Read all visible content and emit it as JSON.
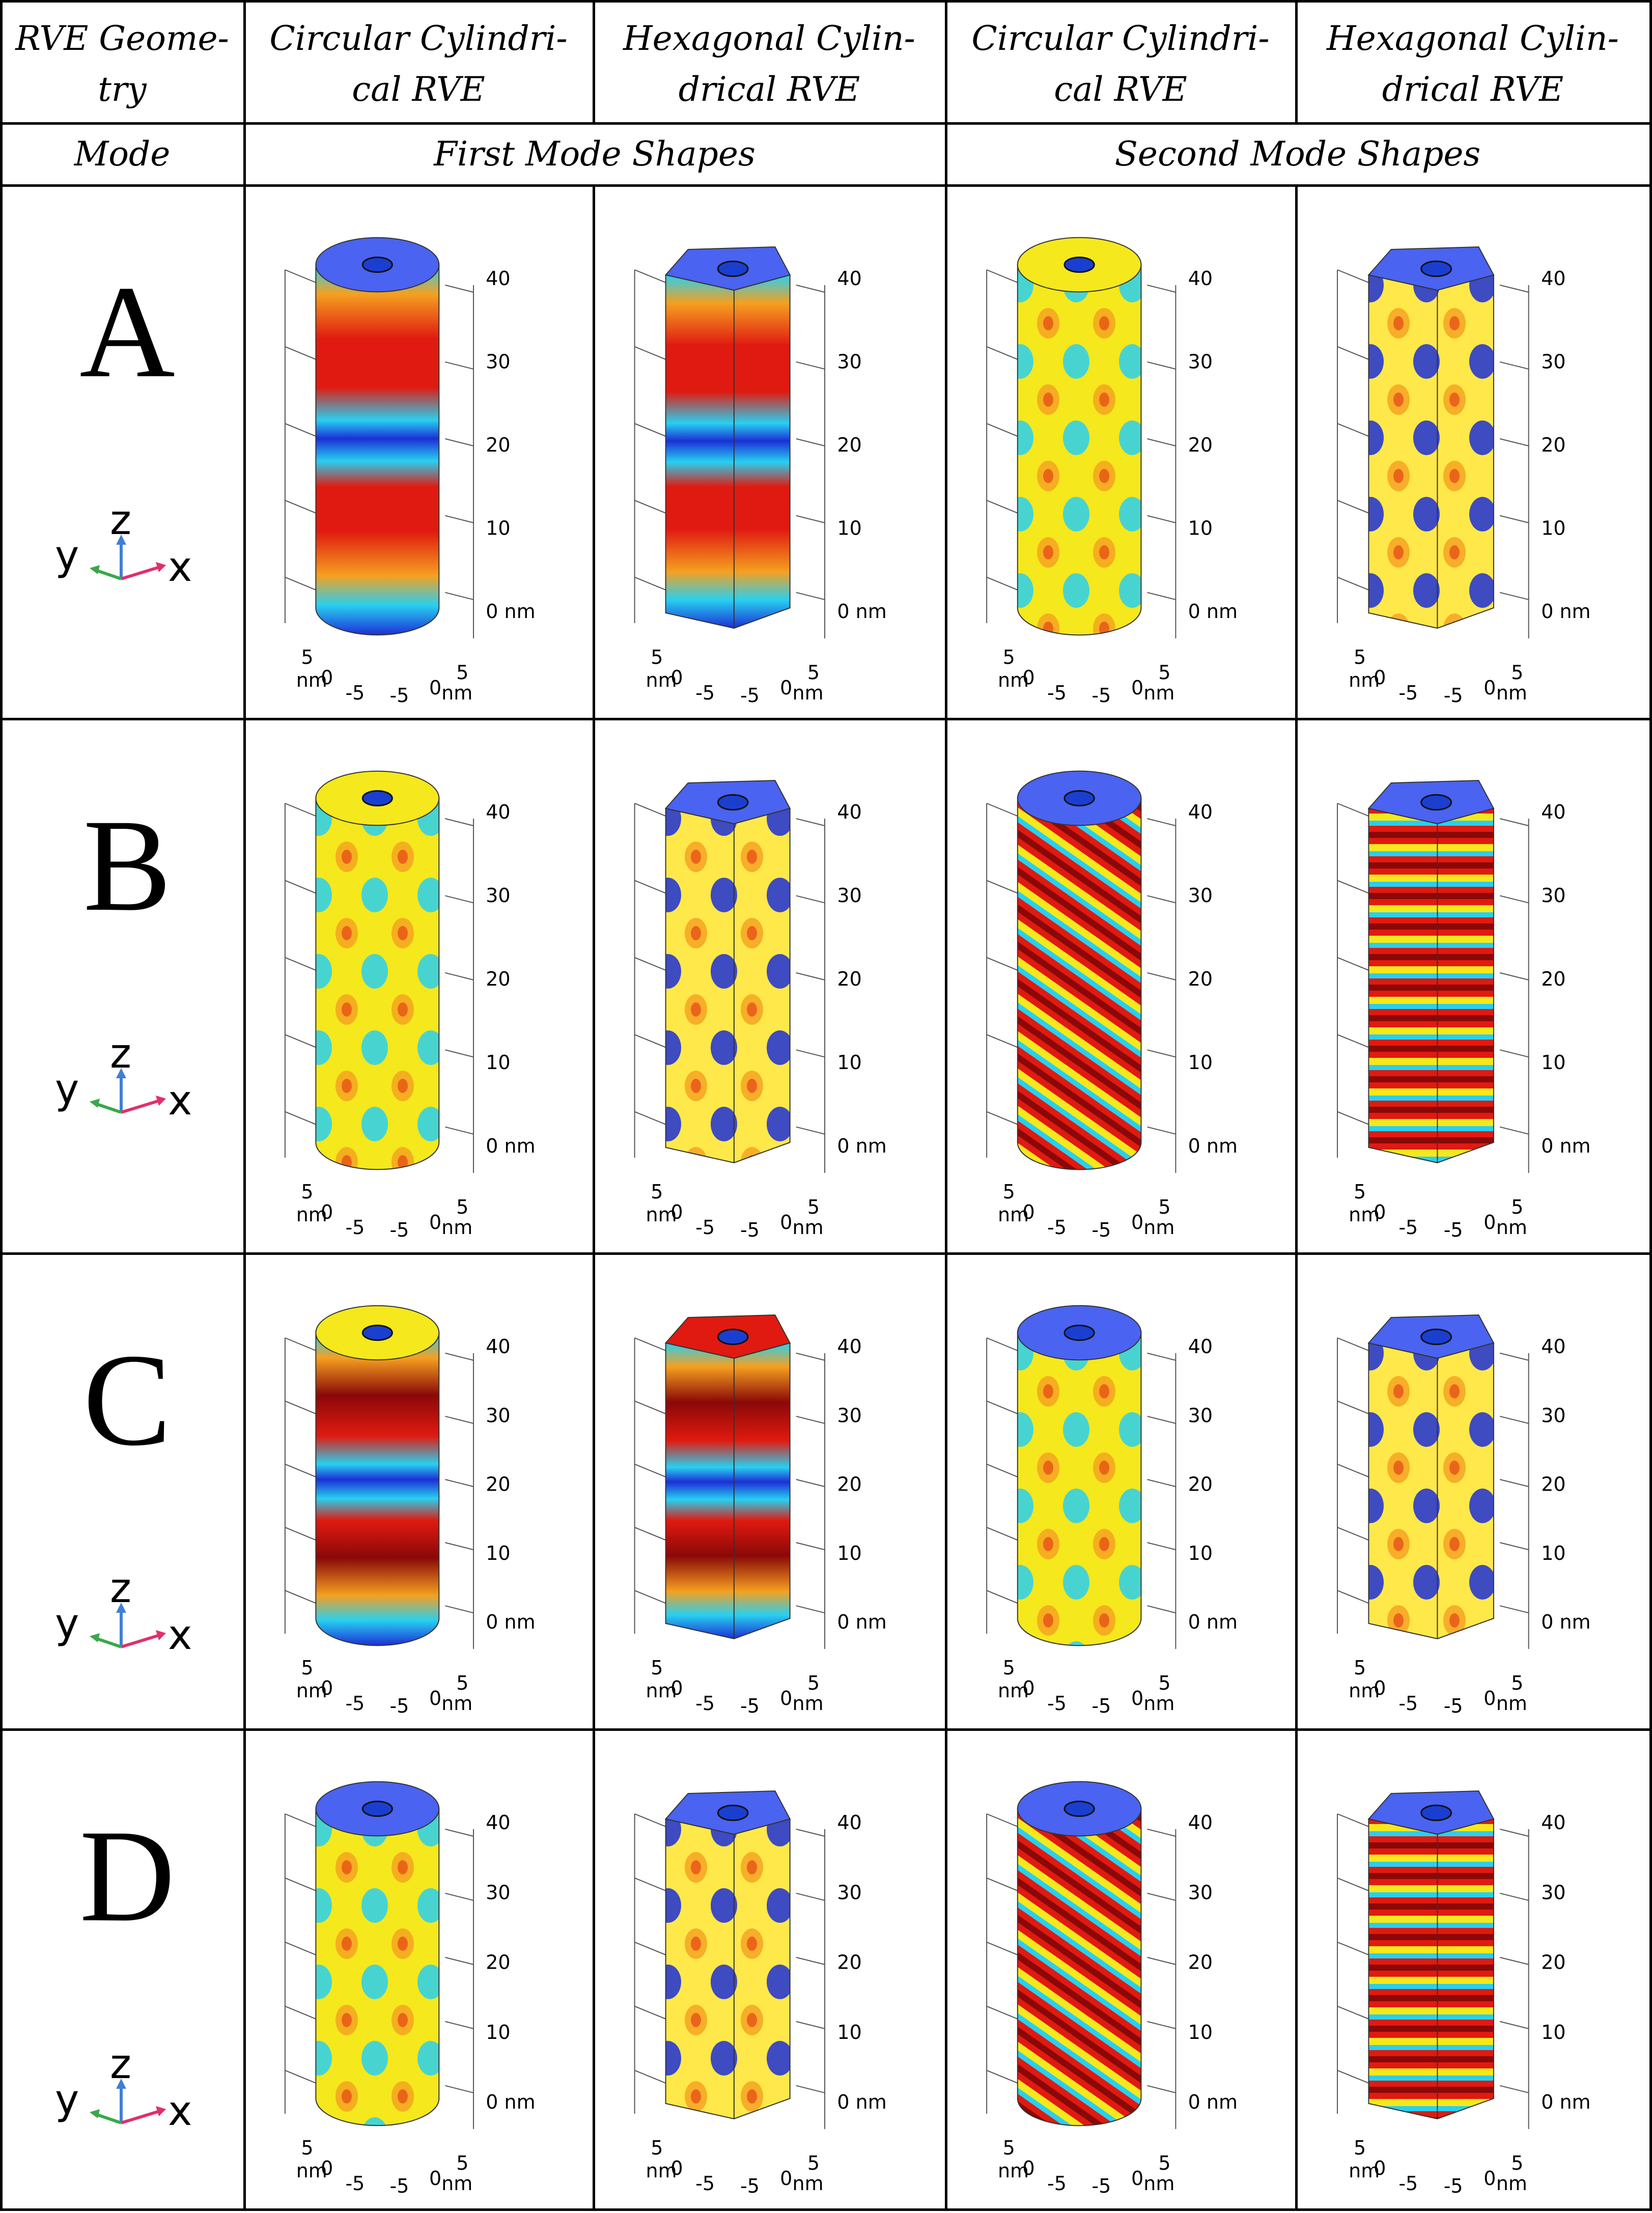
{
  "header": {
    "rve_geometry_label": "RVE Geome-\ntry",
    "columns": [
      "Circular Cylindri-\ncal RVE",
      "Hexagonal Cylin-\ndrical RVE",
      "Circular Cylindri-\ncal RVE",
      "Hexagonal Cylin-\ndrical RVE"
    ],
    "mode_label": "Mode",
    "first_group_label": "First Mode Shapes",
    "second_group_label": "Second Mode Shapes"
  },
  "modes": [
    "A",
    "B",
    "C",
    "D"
  ],
  "axis_triad": {
    "z": "z",
    "y": "y",
    "x": "x"
  },
  "axis_ticks": {
    "z": [
      "0 nm",
      "10",
      "20",
      "30",
      "40"
    ],
    "x": [
      "5",
      "0",
      "-5",
      "nm"
    ],
    "y": [
      "5",
      "0",
      "-5",
      "nm"
    ]
  },
  "colors": {
    "deep_blue": "#1c2fd6",
    "cyan": "#28d0f0",
    "yellow": "#f5e81c",
    "orange": "#f5a020",
    "red": "#e01a10",
    "dark_red": "#8a0808",
    "top_blue": "#4a63f0"
  },
  "plots": [
    [
      {
        "shape": "circular",
        "pattern": "rings-red",
        "top": "blue"
      },
      {
        "shape": "hexagonal",
        "pattern": "rings-red",
        "top": "blue"
      },
      {
        "shape": "circular",
        "pattern": "spots-yellow",
        "top": "yellow"
      },
      {
        "shape": "hexagonal",
        "pattern": "spots-blue",
        "top": "blue"
      }
    ],
    [
      {
        "shape": "circular",
        "pattern": "spots-yellow",
        "top": "yellow"
      },
      {
        "shape": "hexagonal",
        "pattern": "spots-blue",
        "top": "blue"
      },
      {
        "shape": "circular",
        "pattern": "helix-red",
        "top": "blue"
      },
      {
        "shape": "hexagonal",
        "pattern": "stripes-red",
        "top": "blue"
      }
    ],
    [
      {
        "shape": "circular",
        "pattern": "rings-darkred",
        "top": "yellow"
      },
      {
        "shape": "hexagonal",
        "pattern": "rings-darkred",
        "top": "red"
      },
      {
        "shape": "circular",
        "pattern": "spots-yellow",
        "top": "blue"
      },
      {
        "shape": "hexagonal",
        "pattern": "spots-blue",
        "top": "blue"
      }
    ],
    [
      {
        "shape": "circular",
        "pattern": "spots-yellow",
        "top": "blue"
      },
      {
        "shape": "hexagonal",
        "pattern": "spots-blue",
        "top": "blue"
      },
      {
        "shape": "circular",
        "pattern": "helix-red",
        "top": "blue"
      },
      {
        "shape": "hexagonal",
        "pattern": "stripes-red",
        "top": "blue"
      }
    ]
  ]
}
